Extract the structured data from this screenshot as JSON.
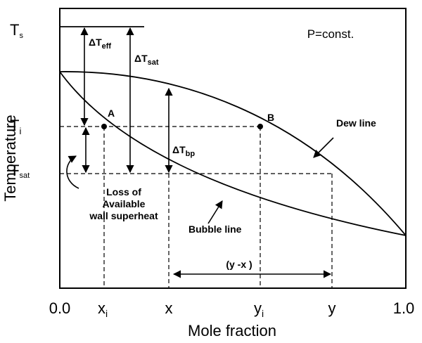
{
  "y_axis_label": "Temperature",
  "x_axis_label": "Mole fraction",
  "annotation": "P=const.",
  "temperature_labels": [
    {
      "main": "T",
      "sub": "s"
    },
    {
      "main": "T",
      "sub": "i"
    },
    {
      "main": "T",
      "sub": "sat"
    }
  ],
  "x_ticks": [
    {
      "main": "0.0"
    },
    {
      "main": "x",
      "sub": "i"
    },
    {
      "main": "x"
    },
    {
      "main": "y",
      "sub": "i"
    },
    {
      "main": "y"
    },
    {
      "main": "1.0"
    }
  ],
  "deltas": [
    {
      "main": "ΔT",
      "sub": "eff"
    },
    {
      "main": "ΔT",
      "sub": "sat"
    },
    {
      "main": "ΔT",
      "sub": "bp"
    }
  ],
  "points": [
    "A",
    "B"
  ],
  "curves": [
    "Dew line",
    "Bubble line"
  ],
  "loss_note": [
    "Loss of",
    "Available",
    "wall superheat"
  ],
  "span_label": "(y -x )"
}
